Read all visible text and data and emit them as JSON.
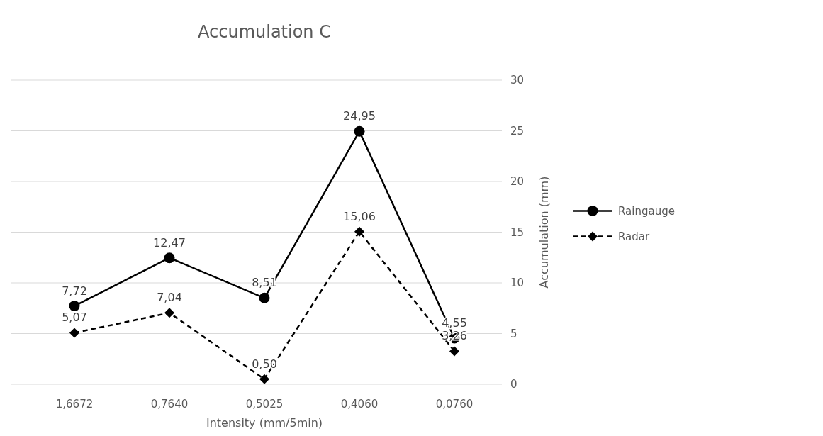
{
  "chart_data": {
    "type": "line",
    "title": "Accumulation C",
    "xlabel": "Intensity (mm/5min)",
    "ylabel": "Accumulation (mm)",
    "categories": [
      "1,6672",
      "0,7640",
      "0,5025",
      "0,4060",
      "0,0760"
    ],
    "series": [
      {
        "name": "Raingauge",
        "color": "#000000",
        "values": [
          7.72,
          12.47,
          8.51,
          24.95,
          4.55
        ],
        "value_labels": [
          "7,72",
          "12,47",
          "8,51",
          "24,95",
          "4,55"
        ],
        "marker": "circle",
        "line_style": "solid"
      },
      {
        "name": "Radar",
        "color": "#000000",
        "values": [
          5.07,
          7.04,
          0.5,
          15.06,
          3.26
        ],
        "value_labels": [
          "5,07",
          "7,04",
          "0,50",
          "15,06",
          "3,26"
        ],
        "marker": "diamond",
        "line_style": "dashed"
      }
    ],
    "ylim": [
      0,
      30
    ],
    "yticks": [
      0,
      5,
      10,
      15,
      20,
      25,
      30
    ],
    "grid": "y",
    "legend": "right"
  }
}
